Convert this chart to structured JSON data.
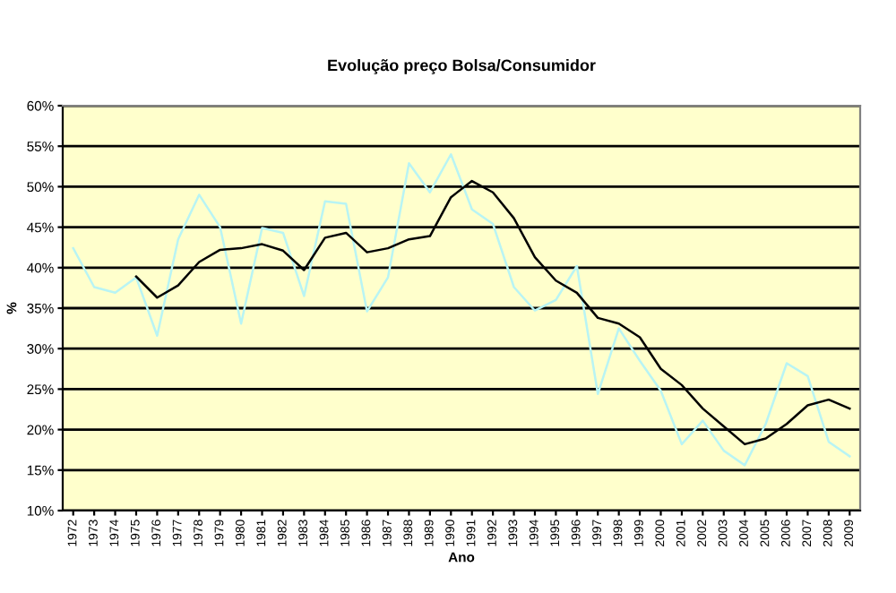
{
  "chart_data": {
    "type": "line",
    "title": "Evolução preço Bolsa/Consumidor",
    "xlabel": "Ano",
    "ylabel": "%",
    "categories": [
      "1972",
      "1973",
      "1974",
      "1975",
      "1976",
      "1977",
      "1978",
      "1979",
      "1980",
      "1981",
      "1982",
      "1983",
      "1984",
      "1985",
      "1986",
      "1987",
      "1988",
      "1989",
      "1990",
      "1991",
      "1992",
      "1993",
      "1994",
      "1995",
      "1996",
      "1997",
      "1998",
      "1999",
      "2000",
      "2001",
      "2002",
      "2003",
      "2004",
      "2005",
      "2006",
      "2007",
      "2008",
      "2009"
    ],
    "series": [
      {
        "color": "#b8f4f4",
        "values": [
          42.4,
          37.6,
          36.9,
          38.8,
          31.6,
          43.5,
          49.0,
          45.0,
          33.1,
          44.9,
          44.3,
          36.5,
          48.2,
          47.9,
          34.6,
          38.8,
          52.9,
          49.3,
          54.0,
          47.2,
          45.4,
          37.6,
          34.7,
          36.0,
          40.2,
          24.4,
          32.5,
          28.5,
          24.8,
          18.2,
          21.1,
          17.4,
          15.6,
          20.7,
          28.2,
          26.6,
          18.5,
          16.7
        ]
      },
      {
        "color": "#000000",
        "values": [
          null,
          null,
          null,
          38.9,
          36.3,
          37.8,
          40.7,
          42.2,
          42.4,
          42.9,
          42.1,
          39.7,
          43.7,
          44.3,
          41.9,
          42.4,
          43.5,
          43.9,
          48.7,
          50.7,
          49.3,
          46.1,
          41.3,
          38.4,
          36.9,
          33.8,
          33.1,
          31.4,
          27.5,
          25.5,
          22.6,
          20.4,
          18.2,
          18.9,
          20.7,
          23.0,
          23.7,
          22.6
        ]
      }
    ],
    "ylim": [
      10,
      60
    ],
    "yticks": [
      {
        "value": 10,
        "label": "10%"
      },
      {
        "value": 15,
        "label": "15%"
      },
      {
        "value": 20,
        "label": "20%"
      },
      {
        "value": 25,
        "label": "25%"
      },
      {
        "value": 30,
        "label": "30%"
      },
      {
        "value": 35,
        "label": "35%"
      },
      {
        "value": 40,
        "label": "40%"
      },
      {
        "value": 45,
        "label": "45%"
      },
      {
        "value": 50,
        "label": "50%"
      },
      {
        "value": 55,
        "label": "55%"
      },
      {
        "value": 60,
        "label": "60%"
      }
    ],
    "grid": "y",
    "marker": "none",
    "line_style": "solid"
  }
}
